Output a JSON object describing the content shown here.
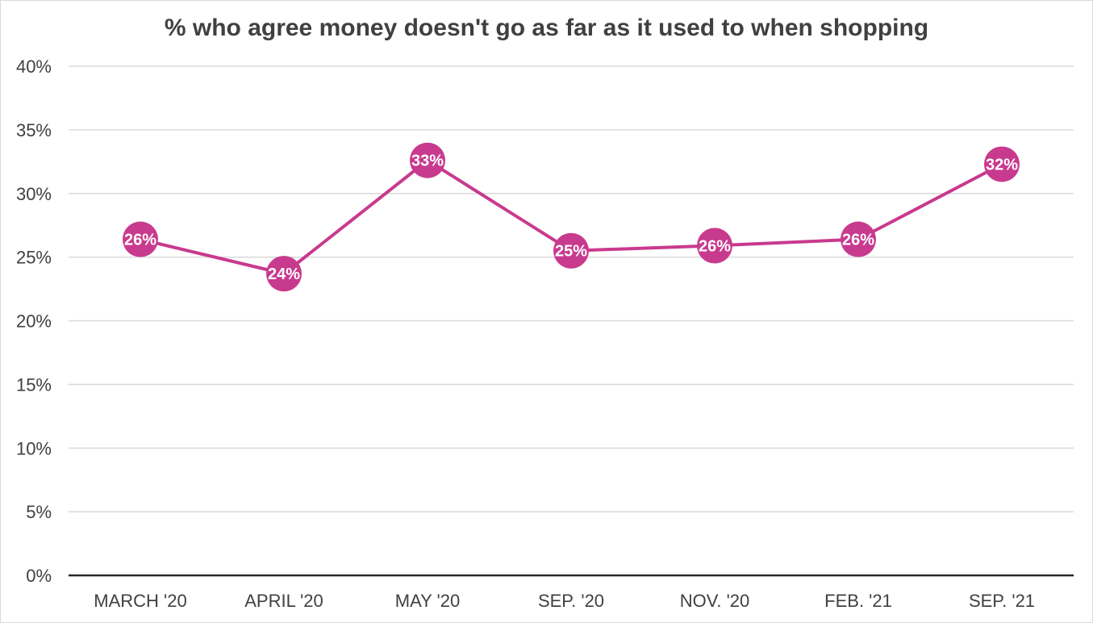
{
  "chart_data": {
    "type": "line",
    "title": "% who agree money doesn't go as far as it used to when shopping",
    "xlabel": "",
    "ylabel": "",
    "categories": [
      "MARCH '20",
      "APRIL '20",
      "MAY '20",
      "SEP. '20",
      "NOV. '20",
      "FEB. '21",
      "SEP. '21"
    ],
    "series": [
      {
        "values": [
          26.4,
          23.7,
          32.6,
          25.5,
          25.9,
          26.4,
          32.3
        ],
        "labels": [
          "26%",
          "24%",
          "33%",
          "25%",
          "26%",
          "26%",
          "32%"
        ],
        "color": "#c83a8e"
      }
    ],
    "yticks": [
      "0%",
      "5%",
      "10%",
      "15%",
      "20%",
      "25%",
      "30%",
      "35%",
      "40%"
    ],
    "ylim": [
      0,
      40
    ],
    "grid": true,
    "legend": "none"
  },
  "colors": {
    "series": "#c83a8e",
    "grid": "#d9d9d9",
    "axis": "#262626",
    "text": "#404040"
  }
}
